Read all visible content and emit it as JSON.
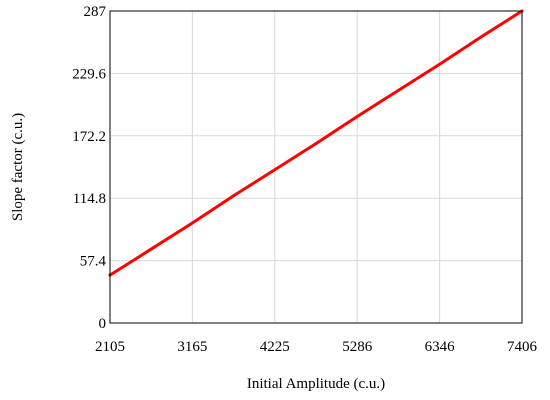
{
  "chart_data": {
    "type": "line",
    "title": "",
    "xlabel": "Initial Amplitude (c.u.)",
    "ylabel": "Slope factor (c.u.)",
    "xlim": [
      2105,
      7406
    ],
    "ylim": [
      0,
      287
    ],
    "x_ticks": [
      2105,
      3165,
      4225,
      5286,
      6346,
      7406
    ],
    "y_ticks": [
      0,
      57.4,
      114.8,
      172.2,
      229.6,
      287
    ],
    "y_tick_labels": [
      "0",
      "57.4",
      "114.8",
      "172.2",
      "229.6",
      "287"
    ],
    "grid": true,
    "series": [
      {
        "color": "#ff0000",
        "x": [
          2105,
          2635,
          3165,
          3695,
          4225,
          4755,
          5286,
          5816,
          6346,
          6876,
          7406
        ],
        "y": [
          44,
          68,
          92,
          117,
          141,
          165,
          190,
          214,
          238,
          263,
          287
        ]
      }
    ]
  }
}
